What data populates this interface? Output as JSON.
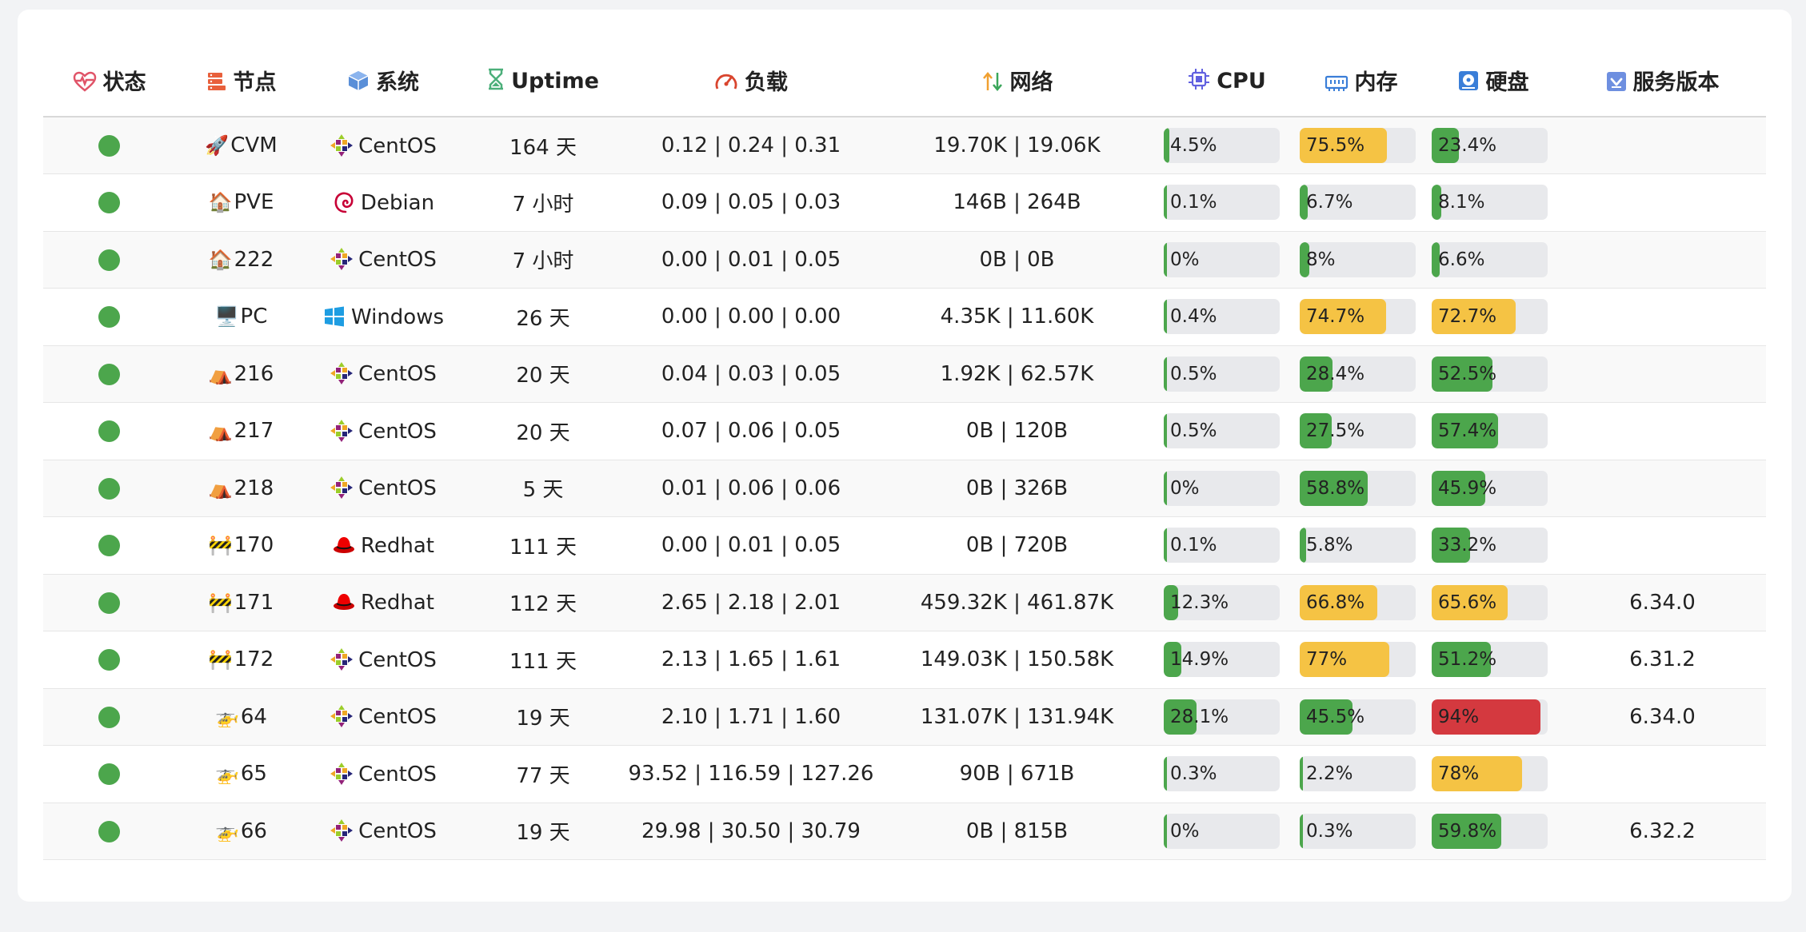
{
  "headers": {
    "status": "状态",
    "node": "节点",
    "system": "系统",
    "uptime": "Uptime",
    "load": "负载",
    "network": "网络",
    "cpu": "CPU",
    "memory": "内存",
    "disk": "硬盘",
    "version": "服务版本"
  },
  "colors": {
    "online": "#4ca64c",
    "low": "#4ca64c",
    "medium": "#f5c344",
    "high": "#d4393f"
  },
  "rows": [
    {
      "emoji": "🚀",
      "name": "CVM",
      "os": "CentOS",
      "os_icon": "centos",
      "uptime": "164 天",
      "load": "0.12 | 0.24 | 0.31",
      "net": "19.70K | 19.06K",
      "cpu": "4.5%",
      "cpu_v": 4.5,
      "mem": "75.5%",
      "mem_v": 75.5,
      "disk": "23.4%",
      "disk_v": 23.4,
      "version": ""
    },
    {
      "emoji": "🏠",
      "name": "PVE",
      "os": "Debian",
      "os_icon": "debian",
      "uptime": "7 小时",
      "load": "0.09 | 0.05 | 0.03",
      "net": "146B | 264B",
      "cpu": "0.1%",
      "cpu_v": 0.1,
      "mem": "6.7%",
      "mem_v": 6.7,
      "disk": "8.1%",
      "disk_v": 8.1,
      "version": ""
    },
    {
      "emoji": "🏠",
      "name": "222",
      "os": "CentOS",
      "os_icon": "centos",
      "uptime": "7 小时",
      "load": "0.00 | 0.01 | 0.05",
      "net": "0B | 0B",
      "cpu": "0%",
      "cpu_v": 0,
      "mem": "8%",
      "mem_v": 8,
      "disk": "6.6%",
      "disk_v": 6.6,
      "version": ""
    },
    {
      "emoji": "🖥️",
      "name": "PC",
      "os": "Windows",
      "os_icon": "windows",
      "uptime": "26 天",
      "load": "0.00 | 0.00 | 0.00",
      "net": "4.35K | 11.60K",
      "cpu": "0.4%",
      "cpu_v": 0.4,
      "mem": "74.7%",
      "mem_v": 74.7,
      "disk": "72.7%",
      "disk_v": 72.7,
      "version": ""
    },
    {
      "emoji": "⛺",
      "name": "216",
      "os": "CentOS",
      "os_icon": "centos",
      "uptime": "20 天",
      "load": "0.04 | 0.03 | 0.05",
      "net": "1.92K | 62.57K",
      "cpu": "0.5%",
      "cpu_v": 0.5,
      "mem": "28.4%",
      "mem_v": 28.4,
      "disk": "52.5%",
      "disk_v": 52.5,
      "version": ""
    },
    {
      "emoji": "⛺",
      "name": "217",
      "os": "CentOS",
      "os_icon": "centos",
      "uptime": "20 天",
      "load": "0.07 | 0.06 | 0.05",
      "net": "0B | 120B",
      "cpu": "0.5%",
      "cpu_v": 0.5,
      "mem": "27.5%",
      "mem_v": 27.5,
      "disk": "57.4%",
      "disk_v": 57.4,
      "version": ""
    },
    {
      "emoji": "⛺",
      "name": "218",
      "os": "CentOS",
      "os_icon": "centos",
      "uptime": "5 天",
      "load": "0.01 | 0.06 | 0.06",
      "net": "0B | 326B",
      "cpu": "0%",
      "cpu_v": 0,
      "mem": "58.8%",
      "mem_v": 58.8,
      "disk": "45.9%",
      "disk_v": 45.9,
      "version": ""
    },
    {
      "emoji": "🚧",
      "name": "170",
      "os": "Redhat",
      "os_icon": "redhat",
      "uptime": "111 天",
      "load": "0.00 | 0.01 | 0.05",
      "net": "0B | 720B",
      "cpu": "0.1%",
      "cpu_v": 0.1,
      "mem": "5.8%",
      "mem_v": 5.8,
      "disk": "33.2%",
      "disk_v": 33.2,
      "version": ""
    },
    {
      "emoji": "🚧",
      "name": "171",
      "os": "Redhat",
      "os_icon": "redhat",
      "uptime": "112 天",
      "load": "2.65 | 2.18 | 2.01",
      "net": "459.32K | 461.87K",
      "cpu": "12.3%",
      "cpu_v": 12.3,
      "mem": "66.8%",
      "mem_v": 66.8,
      "disk": "65.6%",
      "disk_v": 65.6,
      "version": "6.34.0"
    },
    {
      "emoji": "🚧",
      "name": "172",
      "os": "CentOS",
      "os_icon": "centos",
      "uptime": "111 天",
      "load": "2.13 | 1.65 | 1.61",
      "net": "149.03K | 150.58K",
      "cpu": "14.9%",
      "cpu_v": 14.9,
      "mem": "77%",
      "mem_v": 77,
      "disk": "51.2%",
      "disk_v": 51.2,
      "version": "6.31.2"
    },
    {
      "emoji": "🚁",
      "name": "64",
      "os": "CentOS",
      "os_icon": "centos",
      "uptime": "19 天",
      "load": "2.10 | 1.71 | 1.60",
      "net": "131.07K | 131.94K",
      "cpu": "28.1%",
      "cpu_v": 28.1,
      "mem": "45.5%",
      "mem_v": 45.5,
      "disk": "94%",
      "disk_v": 94,
      "version": "6.34.0"
    },
    {
      "emoji": "🚁",
      "name": "65",
      "os": "CentOS",
      "os_icon": "centos",
      "uptime": "77 天",
      "load": "93.52 | 116.59 | 127.26",
      "net": "90B | 671B",
      "cpu": "0.3%",
      "cpu_v": 0.3,
      "mem": "2.2%",
      "mem_v": 2.2,
      "disk": "78%",
      "disk_v": 78,
      "version": ""
    },
    {
      "emoji": "🚁",
      "name": "66",
      "os": "CentOS",
      "os_icon": "centos",
      "uptime": "19 天",
      "load": "29.98 | 30.50 | 30.79",
      "net": "0B | 815B",
      "cpu": "0%",
      "cpu_v": 0,
      "mem": "0.3%",
      "mem_v": 0.3,
      "disk": "59.8%",
      "disk_v": 59.8,
      "version": "6.32.2"
    }
  ]
}
